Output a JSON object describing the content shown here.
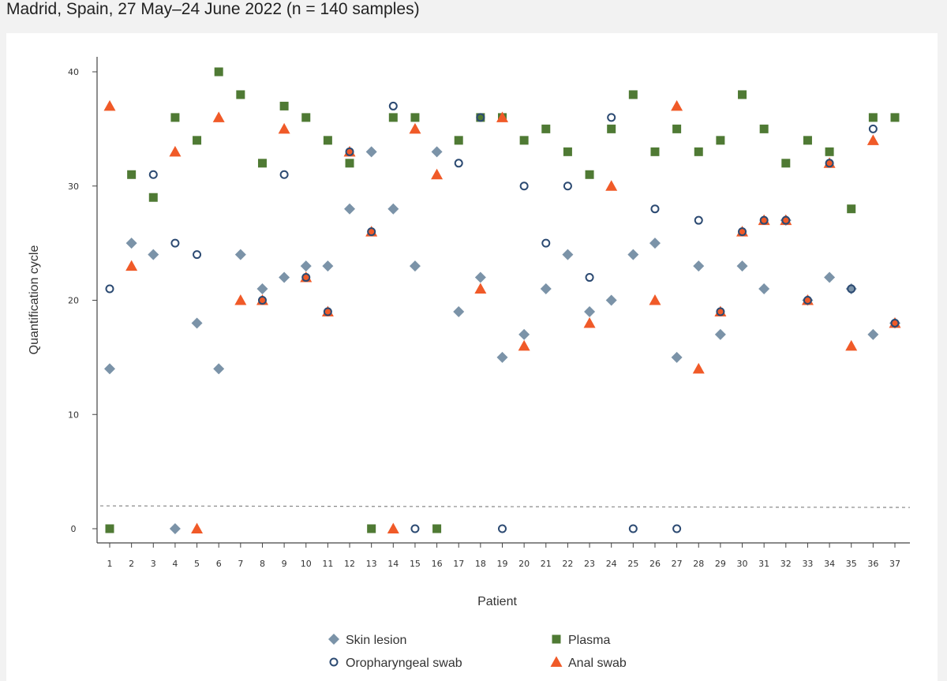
{
  "caption": "Madrid, Spain, 27 May–24 June 2022 (n = 140 samples)",
  "colors": {
    "skin": "#7b93a8",
    "oro": "#2c4a72",
    "plasma": "#4f7a34",
    "anal": "#f05a28",
    "axis": "#444444",
    "threshold": "#888888"
  },
  "chart_data": {
    "type": "scatter",
    "xlabel": "Patient",
    "ylabel": "Quantification cycle",
    "ylim": [
      0,
      40
    ],
    "yticks": [
      0,
      10,
      20,
      30,
      40
    ],
    "categories": [
      "1",
      "2",
      "3",
      "4",
      "5",
      "6",
      "7",
      "8",
      "9",
      "10",
      "11",
      "12",
      "13",
      "14",
      "15",
      "16",
      "17",
      "18",
      "19",
      "20",
      "21",
      "22",
      "23",
      "24",
      "25",
      "26",
      "27",
      "28",
      "29",
      "30",
      "31",
      "32",
      "33",
      "34",
      "35",
      "36",
      "37"
    ],
    "threshold": 2,
    "series": [
      {
        "name": "Skin lesion",
        "marker": "diamond",
        "values": [
          14,
          25,
          24,
          0,
          18,
          14,
          24,
          21,
          22,
          23,
          23,
          28,
          33,
          28,
          23,
          33,
          19,
          22,
          15,
          17,
          21,
          24,
          19,
          20,
          24,
          25,
          15,
          23,
          17,
          23,
          21,
          27,
          20,
          22,
          21,
          17,
          18
        ]
      },
      {
        "name": "Oropharyngeal swab",
        "marker": "circle",
        "values": [
          21,
          null,
          31,
          25,
          24,
          null,
          null,
          20,
          31,
          22,
          19,
          33,
          26,
          37,
          0,
          null,
          32,
          36,
          0,
          30,
          25,
          30,
          22,
          36,
          0,
          28,
          0,
          27,
          19,
          26,
          27,
          27,
          20,
          32,
          21,
          35,
          18
        ]
      },
      {
        "name": "Plasma",
        "marker": "square",
        "values": [
          0,
          31,
          29,
          36,
          34,
          40,
          38,
          32,
          37,
          36,
          34,
          32,
          0,
          36,
          36,
          0,
          34,
          36,
          36,
          34,
          35,
          33,
          31,
          35,
          38,
          33,
          35,
          33,
          34,
          38,
          35,
          32,
          34,
          33,
          28,
          36,
          36
        ]
      },
      {
        "name": "Anal swab",
        "marker": "triangle",
        "values": [
          37,
          23,
          null,
          33,
          0,
          36,
          20,
          20,
          35,
          22,
          19,
          33,
          26,
          0,
          35,
          31,
          null,
          21,
          36,
          16,
          null,
          null,
          18,
          30,
          null,
          20,
          37,
          14,
          19,
          26,
          27,
          27,
          20,
          32,
          16,
          34,
          18
        ]
      }
    ],
    "legend": [
      "Skin lesion",
      "Plasma",
      "Oropharyngeal swab",
      "Anal swab"
    ]
  }
}
